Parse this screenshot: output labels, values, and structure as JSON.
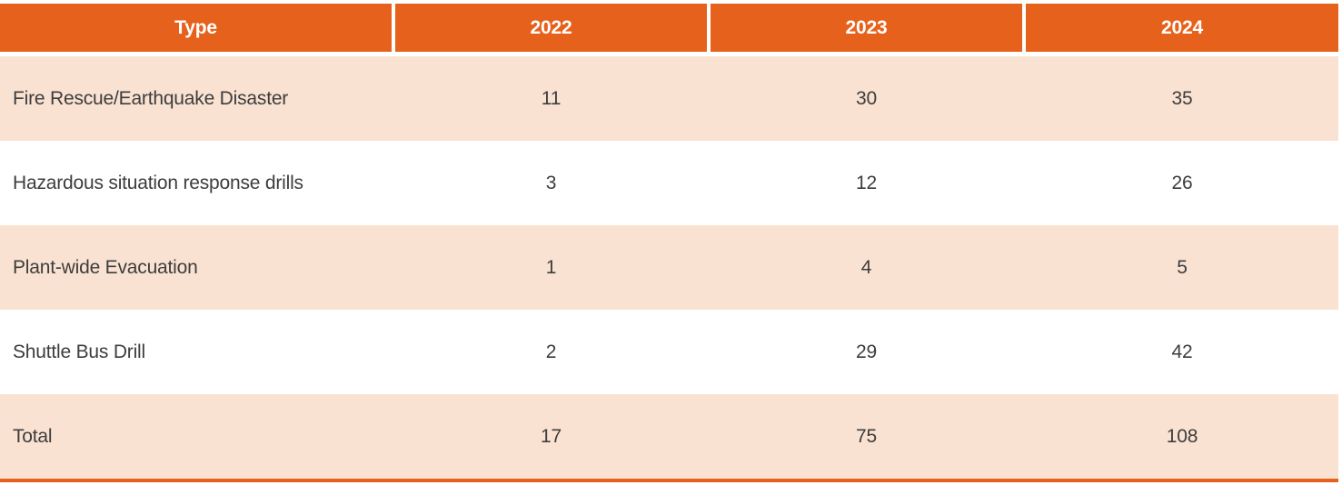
{
  "colors": {
    "header_bg": "#E6621C",
    "header_text": "#FFFFFF",
    "stripe_bg": "#FAE2D2",
    "body_text": "#3D3D3D",
    "bottom_bar": "#E6621C"
  },
  "chart_data": {
    "type": "table",
    "columns": [
      "Type",
      "2022",
      "2023",
      "2024"
    ],
    "rows": [
      [
        "Fire Rescue/Earthquake Disaster",
        11,
        30,
        35
      ],
      [
        "Hazardous situation response drills",
        3,
        12,
        26
      ],
      [
        "Plant-wide Evacuation",
        1,
        4,
        5
      ],
      [
        "Shuttle Bus Drill",
        2,
        29,
        42
      ],
      [
        "Total",
        17,
        75,
        108
      ]
    ]
  }
}
